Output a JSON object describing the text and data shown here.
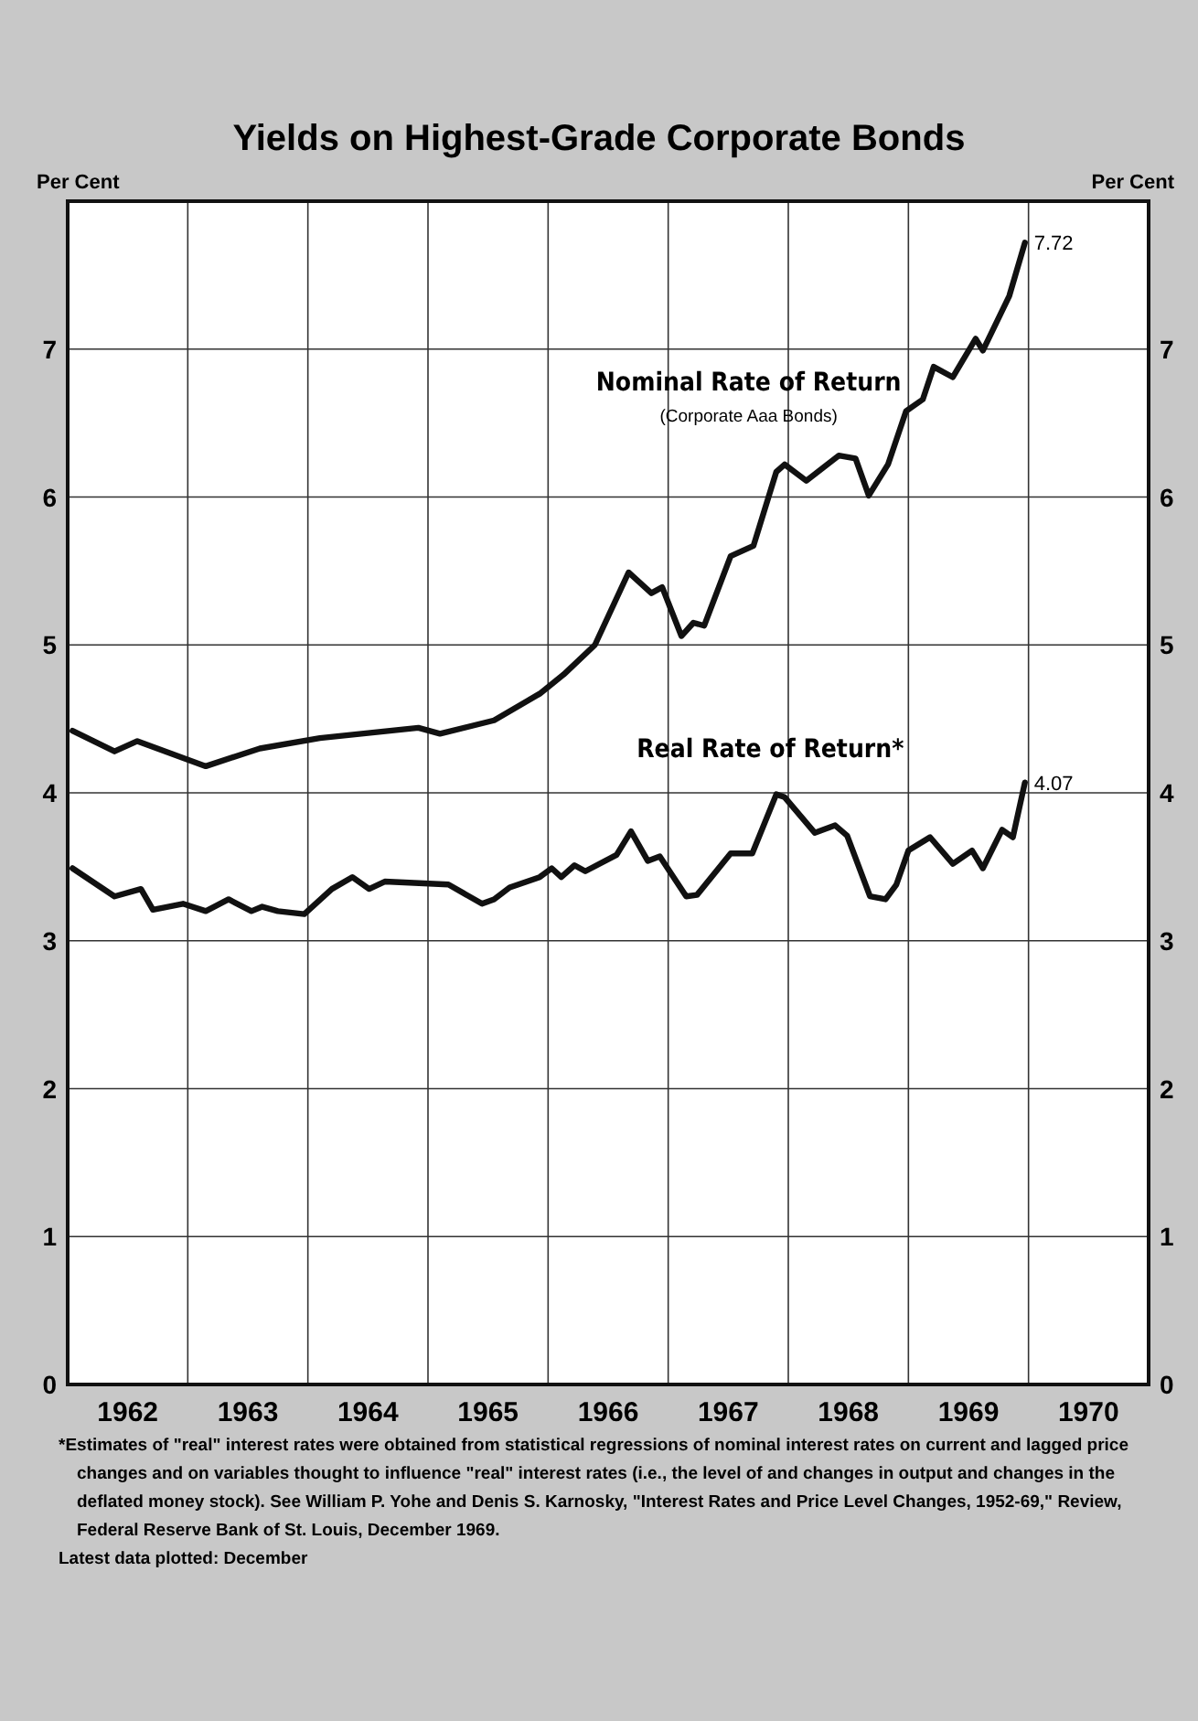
{
  "chart_data": {
    "type": "line",
    "title": "Yields on Highest-Grade Corporate Bonds",
    "ylabel": "Per Cent",
    "y2label": "Per Cent",
    "xlim": [
      1962,
      1971
    ],
    "xticks": [
      {
        "value": 1962.5,
        "label": "1962"
      },
      {
        "value": 1963,
        "label": null
      },
      {
        "value": 1963.5,
        "label": "1963"
      },
      {
        "value": 1964,
        "label": null
      },
      {
        "value": 1964.5,
        "label": "1964"
      },
      {
        "value": 1965,
        "label": null
      },
      {
        "value": 1965.5,
        "label": "1965"
      },
      {
        "value": 1966,
        "label": null
      },
      {
        "value": 1966.5,
        "label": "1966"
      },
      {
        "value": 1967,
        "label": null
      },
      {
        "value": 1967.5,
        "label": "1967"
      },
      {
        "value": 1968,
        "label": null
      },
      {
        "value": 1968.5,
        "label": "1968"
      },
      {
        "value": 1969,
        "label": null
      },
      {
        "value": 1969.5,
        "label": "1969"
      },
      {
        "value": 1970,
        "label": null
      },
      {
        "value": 1970.5,
        "label": "1970"
      }
    ],
    "ylim": [
      0,
      8
    ],
    "yticks": [
      0,
      1,
      2,
      3,
      4,
      5,
      6,
      7
    ],
    "y2lim": [
      0,
      8
    ],
    "y2ticks": [
      0,
      1,
      2,
      3,
      4,
      5,
      6,
      7
    ],
    "grid": true,
    "marker": "none",
    "line_style": "solid",
    "series": [
      {
        "name": "Nominal Rate of Return",
        "color": "#111111",
        "x": [
          1962.04,
          1962.39,
          1962.58,
          1963.15,
          1963.6,
          1964.1,
          1964.92,
          1965.1,
          1965.55,
          1965.93,
          1966.13,
          1966.39,
          1966.67,
          1966.86,
          1966.95,
          1967.11,
          1967.21,
          1967.3,
          1967.52,
          1967.71,
          1967.9,
          1967.97,
          1968.15,
          1968.42,
          1968.56,
          1968.67,
          1968.83,
          1968.98,
          1969.12,
          1969.21,
          1969.37,
          1969.56,
          1969.62,
          1969.84,
          1969.97
        ],
        "values": [
          4.42,
          4.28,
          4.35,
          4.18,
          4.3,
          4.37,
          4.44,
          4.4,
          4.49,
          4.67,
          4.8,
          5.0,
          5.49,
          5.35,
          5.39,
          5.06,
          5.15,
          5.13,
          5.6,
          5.67,
          6.17,
          6.22,
          6.11,
          6.28,
          6.26,
          6.01,
          6.22,
          6.58,
          6.66,
          6.88,
          6.81,
          7.07,
          6.99,
          7.36,
          7.72
        ],
        "value_labels": [
          null,
          null,
          null,
          null,
          null,
          null,
          null,
          null,
          null,
          null,
          null,
          null,
          null,
          null,
          null,
          null,
          null,
          null,
          null,
          null,
          null,
          null,
          null,
          null,
          null,
          null,
          null,
          null,
          null,
          null,
          null,
          null,
          null,
          null,
          "7.72"
        ]
      },
      {
        "name": "Real Rate of Return*",
        "color": "#111111",
        "x": [
          1962.04,
          1962.39,
          1962.61,
          1962.71,
          1962.96,
          1963.15,
          1963.34,
          1963.53,
          1963.62,
          1963.75,
          1963.97,
          1964.2,
          1964.37,
          1964.51,
          1964.64,
          1965.17,
          1965.45,
          1965.55,
          1965.68,
          1965.93,
          1966.03,
          1966.11,
          1966.22,
          1966.31,
          1966.57,
          1966.69,
          1966.83,
          1966.93,
          1967.15,
          1967.24,
          1967.52,
          1967.7,
          1967.9,
          1967.97,
          1968.22,
          1968.39,
          1968.49,
          1968.68,
          1968.81,
          1968.9,
          1969.0,
          1969.18,
          1969.37,
          1969.53,
          1969.62,
          1969.78,
          1969.87,
          1969.97
        ],
        "values": [
          3.49,
          3.3,
          3.35,
          3.21,
          3.25,
          3.2,
          3.28,
          3.2,
          3.23,
          3.2,
          3.18,
          3.35,
          3.43,
          3.35,
          3.4,
          3.38,
          3.25,
          3.28,
          3.36,
          3.43,
          3.49,
          3.43,
          3.51,
          3.47,
          3.58,
          3.74,
          3.54,
          3.57,
          3.3,
          3.31,
          3.59,
          3.59,
          3.99,
          3.97,
          3.73,
          3.78,
          3.71,
          3.3,
          3.28,
          3.38,
          3.61,
          3.7,
          3.52,
          3.61,
          3.49,
          3.75,
          3.7,
          4.07
        ],
        "value_labels": [
          null,
          null,
          null,
          null,
          null,
          null,
          null,
          null,
          null,
          null,
          null,
          null,
          null,
          null,
          null,
          null,
          null,
          null,
          null,
          null,
          null,
          null,
          null,
          null,
          null,
          null,
          null,
          null,
          null,
          null,
          null,
          null,
          null,
          null,
          null,
          null,
          null,
          null,
          null,
          null,
          null,
          null,
          null,
          null,
          null,
          null,
          null,
          "4.07"
        ]
      }
    ],
    "annotations": [
      "(Corporate Aaa Bonds)",
      "*Estimates of \"real\" interest rates were obtained from statistical regressions of nominal interest rates on current and lagged price changes and on variables thought to influence \"real\" interest rates (i.e., the level of and changes in output and changes in the deflated money stock). See William P. Yohe and Denis S. Karnosky, \"Interest Rates and Price Level Changes, 1952-69,\" Review, Federal Reserve Bank of St. Louis, December 1969.",
      "Latest data plotted: December"
    ]
  }
}
